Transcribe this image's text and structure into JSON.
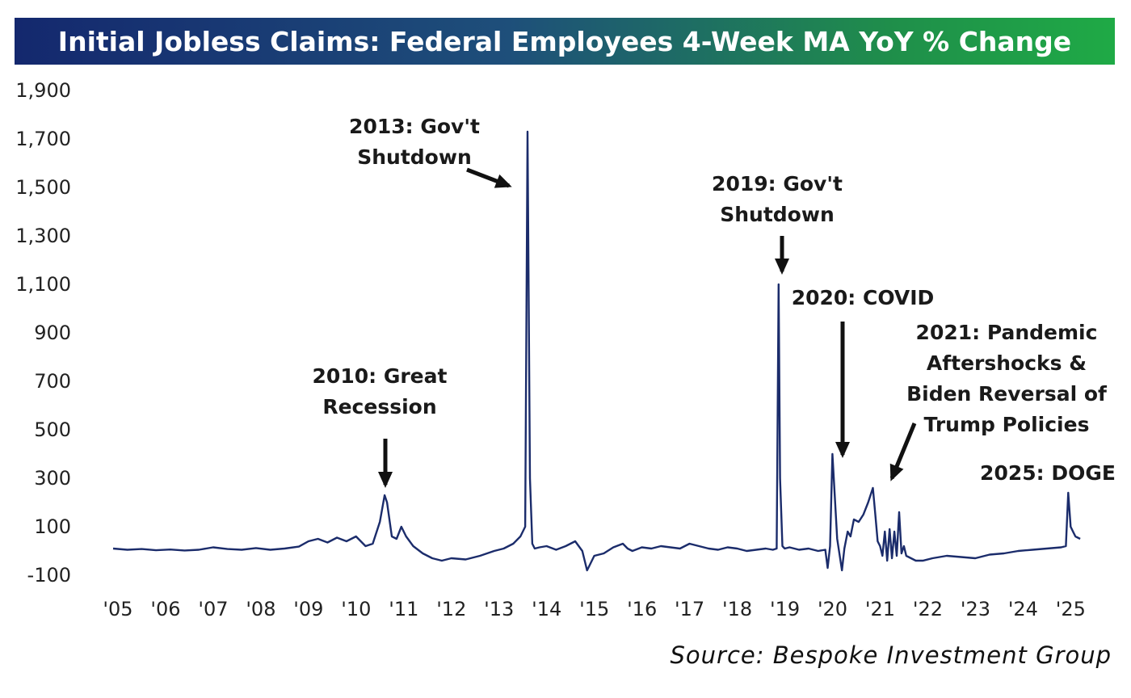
{
  "chart_data": {
    "type": "line",
    "title": "Initial Jobless Claims: Federal Employees 4-Week MA YoY % Change",
    "xlabel": "",
    "ylabel": "",
    "xlim": [
      2005.0,
      2025.35
    ],
    "ylim": [
      -150,
      1950
    ],
    "y_ticks": [
      1900,
      1700,
      1500,
      1300,
      1100,
      900,
      700,
      500,
      300,
      100,
      -100
    ],
    "y_tick_labels": [
      "1,900",
      "1,700",
      "1,500",
      "1,300",
      "1,100",
      "900",
      "700",
      "500",
      "300",
      "100",
      "-100"
    ],
    "x_ticks": [
      2005,
      2006,
      2007,
      2008,
      2009,
      2010,
      2011,
      2012,
      2013,
      2014,
      2015,
      2016,
      2017,
      2018,
      2019,
      2020,
      2021,
      2022,
      2023,
      2024,
      2025
    ],
    "x_tick_labels": [
      "'05",
      "'06",
      "'07",
      "'08",
      "'09",
      "'10",
      "'11",
      "'12",
      "'13",
      "'14",
      "'15",
      "'16",
      "'17",
      "'18",
      "'19",
      "'20",
      "'21",
      "'22",
      "'23",
      "'24",
      "'25"
    ],
    "series": [
      {
        "name": "Federal Employees 4-Week MA YoY % Change",
        "color": "#1b2c6b",
        "x": [
          2005.0,
          2005.3,
          2005.6,
          2005.9,
          2006.2,
          2006.5,
          2006.8,
          2007.1,
          2007.4,
          2007.7,
          2008.0,
          2008.3,
          2008.6,
          2008.9,
          2009.1,
          2009.3,
          2009.5,
          2009.7,
          2009.9,
          2010.1,
          2010.3,
          2010.45,
          2010.6,
          2010.7,
          2010.75,
          2010.85,
          2010.95,
          2011.05,
          2011.15,
          2011.3,
          2011.5,
          2011.7,
          2011.9,
          2012.1,
          2012.4,
          2012.7,
          2013.0,
          2013.2,
          2013.4,
          2013.55,
          2013.65,
          2013.7,
          2013.75,
          2013.8,
          2013.85,
          2013.95,
          2014.1,
          2014.3,
          2014.5,
          2014.7,
          2014.85,
          2014.95,
          2015.0,
          2015.1,
          2015.3,
          2015.5,
          2015.7,
          2015.8,
          2015.9,
          2016.1,
          2016.3,
          2016.5,
          2016.7,
          2016.9,
          2017.1,
          2017.3,
          2017.5,
          2017.7,
          2017.9,
          2018.1,
          2018.3,
          2018.5,
          2018.7,
          2018.85,
          2018.93,
          2018.97,
          2019.0,
          2019.05,
          2019.1,
          2019.2,
          2019.4,
          2019.6,
          2019.8,
          2019.95,
          2020.0,
          2020.05,
          2020.1,
          2020.2,
          2020.3,
          2020.35,
          2020.42,
          2020.48,
          2020.55,
          2020.65,
          2020.75,
          2020.85,
          2020.95,
          2021.0,
          2021.05,
          2021.1,
          2021.15,
          2021.2,
          2021.25,
          2021.3,
          2021.35,
          2021.4,
          2021.45,
          2021.5,
          2021.55,
          2021.6,
          2021.65,
          2021.75,
          2021.85,
          2022.0,
          2022.2,
          2022.5,
          2022.8,
          2023.1,
          2023.4,
          2023.7,
          2024.0,
          2024.3,
          2024.6,
          2024.9,
          2025.0,
          2025.05,
          2025.1,
          2025.15,
          2025.2,
          2025.25,
          2025.3
        ],
        "y": [
          10,
          5,
          8,
          3,
          6,
          2,
          5,
          15,
          8,
          5,
          12,
          5,
          10,
          18,
          40,
          50,
          35,
          55,
          40,
          60,
          20,
          30,
          120,
          230,
          200,
          60,
          50,
          100,
          60,
          20,
          -10,
          -30,
          -40,
          -30,
          -35,
          -20,
          0,
          10,
          30,
          60,
          100,
          1730,
          300,
          30,
          10,
          15,
          20,
          5,
          20,
          40,
          0,
          -80,
          -60,
          -20,
          -10,
          15,
          30,
          10,
          0,
          15,
          10,
          20,
          15,
          10,
          30,
          20,
          10,
          5,
          15,
          10,
          0,
          5,
          10,
          5,
          10,
          1100,
          300,
          20,
          10,
          15,
          5,
          10,
          0,
          5,
          -70,
          20,
          400,
          50,
          -80,
          10,
          80,
          60,
          130,
          120,
          150,
          200,
          260,
          150,
          40,
          20,
          -20,
          80,
          -40,
          90,
          -30,
          80,
          -20,
          160,
          -10,
          20,
          -20,
          -30,
          -40,
          -40,
          -30,
          -20,
          -25,
          -30,
          -15,
          -10,
          0,
          5,
          10,
          15,
          20,
          240,
          100,
          80,
          60,
          55,
          50
        ]
      }
    ],
    "annotations": [
      {
        "lines": [
          "2010: Great",
          "Recession"
        ],
        "arrow": "down"
      },
      {
        "lines": [
          "2013: Gov't",
          "Shutdown"
        ],
        "arrow": "diagonal"
      },
      {
        "lines": [
          "2019: Gov't",
          "Shutdown"
        ],
        "arrow": "down"
      },
      {
        "lines": [
          "2020: COVID"
        ],
        "arrow": "down"
      },
      {
        "lines": [
          "2021: Pandemic",
          "Aftershocks &",
          "Biden Reversal of",
          "Trump Policies"
        ],
        "arrow": "diagonal"
      },
      {
        "lines": [
          "2025: DOGE"
        ],
        "arrow": "none"
      }
    ],
    "source": "Source: Bespoke Investment Group"
  }
}
